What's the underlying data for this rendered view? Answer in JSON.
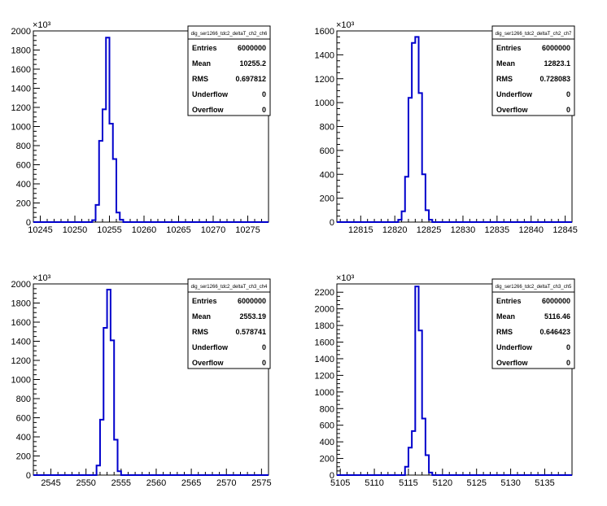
{
  "chart_data": [
    {
      "type": "histogram",
      "stats": {
        "title": "dig_ser1266_tdc2_deltaT_ch2_ch6",
        "rows": [
          [
            "Entries",
            "6000000"
          ],
          [
            "Mean",
            "10255.2"
          ],
          [
            "RMS",
            "0.697812"
          ],
          [
            "Underflow",
            "0"
          ],
          [
            "Overflow",
            "0"
          ]
        ]
      },
      "xlim": [
        10244,
        10278
      ],
      "ylim": [
        0,
        2000
      ],
      "y_multiplier": "×10³",
      "x_ticks": [
        10245,
        10250,
        10255,
        10260,
        10265,
        10270,
        10275
      ],
      "y_ticks": [
        0,
        200,
        400,
        600,
        800,
        1000,
        1200,
        1400,
        1600,
        1800,
        2000
      ],
      "bin_width": 0.5,
      "bins": [
        [
          10252.5,
          20
        ],
        [
          10253.0,
          180
        ],
        [
          10253.5,
          850
        ],
        [
          10254.0,
          1180
        ],
        [
          10254.5,
          1930
        ],
        [
          10255.0,
          1030
        ],
        [
          10255.5,
          660
        ],
        [
          10256.0,
          100
        ],
        [
          10256.5,
          25
        ]
      ]
    },
    {
      "type": "histogram",
      "stats": {
        "title": "dig_ser1266_tdc2_deltaT_ch2_ch7",
        "rows": [
          [
            "Entries",
            "6000000"
          ],
          [
            "Mean",
            "12823.1"
          ],
          [
            "RMS",
            "0.728083"
          ],
          [
            "Underflow",
            "0"
          ],
          [
            "Overflow",
            "0"
          ]
        ]
      },
      "xlim": [
        12811.5,
        12846
      ],
      "ylim": [
        0,
        1600
      ],
      "y_multiplier": "×10³",
      "x_ticks": [
        12815,
        12820,
        12825,
        12830,
        12835,
        12840,
        12845
      ],
      "y_ticks": [
        0,
        200,
        400,
        600,
        800,
        1000,
        1200,
        1400,
        1600
      ],
      "bin_width": 0.5,
      "bins": [
        [
          12820.5,
          20
        ],
        [
          12821.0,
          90
        ],
        [
          12821.5,
          380
        ],
        [
          12822.0,
          1040
        ],
        [
          12822.5,
          1500
        ],
        [
          12823.0,
          1550
        ],
        [
          12823.5,
          1080
        ],
        [
          12824.0,
          400
        ],
        [
          12824.5,
          100
        ],
        [
          12825.0,
          20
        ]
      ]
    },
    {
      "type": "histogram",
      "stats": {
        "title": "dig_ser1266_tdc2_deltaT_ch3_ch4",
        "rows": [
          [
            "Entries",
            "6000000"
          ],
          [
            "Mean",
            "2553.19"
          ],
          [
            "RMS",
            "0.578741"
          ],
          [
            "Underflow",
            "0"
          ],
          [
            "Overflow",
            "0"
          ]
        ]
      },
      "xlim": [
        2542.5,
        2576
      ],
      "ylim": [
        0,
        2000
      ],
      "y_multiplier": "×10³",
      "x_ticks": [
        2545,
        2550,
        2555,
        2560,
        2565,
        2570,
        2575
      ],
      "y_ticks": [
        0,
        200,
        400,
        600,
        800,
        1000,
        1200,
        1400,
        1600,
        1800,
        2000
      ],
      "bin_width": 0.5,
      "bins": [
        [
          2551.5,
          100
        ],
        [
          2552.0,
          580
        ],
        [
          2552.5,
          1540
        ],
        [
          2553.0,
          1940
        ],
        [
          2553.5,
          1410
        ],
        [
          2554.0,
          370
        ],
        [
          2554.5,
          40
        ]
      ]
    },
    {
      "type": "histogram",
      "stats": {
        "title": "dig_ser1266_tdc2_deltaT_ch3_ch5",
        "rows": [
          [
            "Entries",
            "6000000"
          ],
          [
            "Mean",
            "5116.46"
          ],
          [
            "RMS",
            "0.646423"
          ],
          [
            "Underflow",
            "0"
          ],
          [
            "Overflow",
            "0"
          ]
        ]
      },
      "xlim": [
        5104.5,
        5139
      ],
      "ylim": [
        0,
        2300
      ],
      "y_multiplier": "×10³",
      "x_ticks": [
        5105,
        5110,
        5115,
        5120,
        5125,
        5130,
        5135
      ],
      "y_ticks": [
        0,
        200,
        400,
        600,
        800,
        1000,
        1200,
        1400,
        1600,
        1800,
        2000,
        2200
      ],
      "bin_width": 0.5,
      "bins": [
        [
          5114.5,
          100
        ],
        [
          5115.0,
          330
        ],
        [
          5115.5,
          530
        ],
        [
          5116.0,
          2270
        ],
        [
          5116.5,
          1740
        ],
        [
          5117.0,
          680
        ],
        [
          5117.5,
          240
        ],
        [
          5118.0,
          30
        ]
      ]
    }
  ]
}
